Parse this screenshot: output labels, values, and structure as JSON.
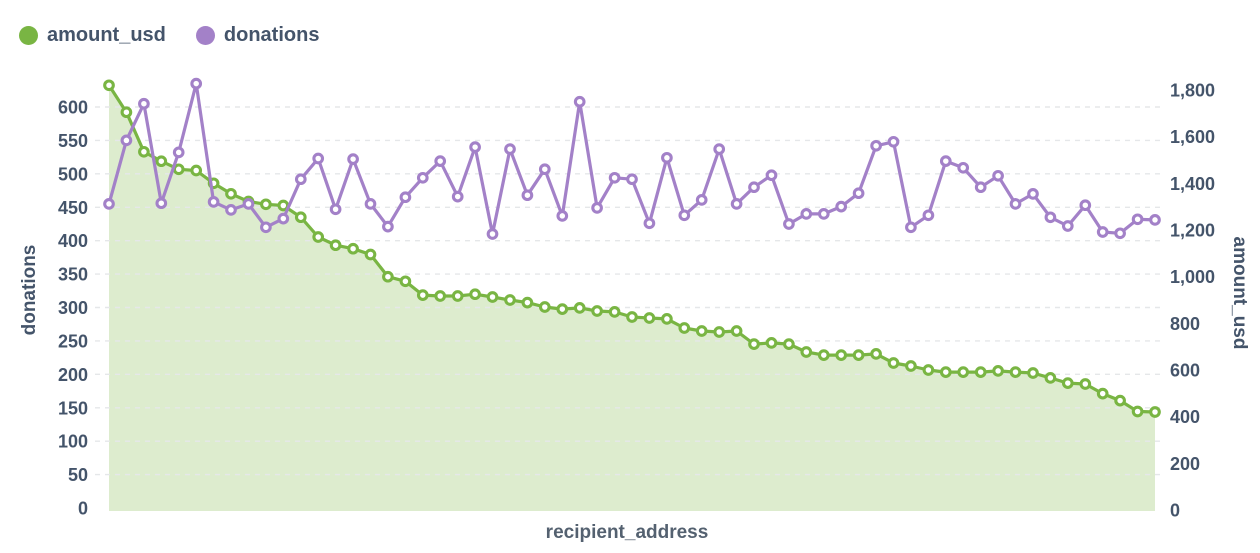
{
  "legend": {
    "items": [
      {
        "label": "amount_usd",
        "color": "#79b543"
      },
      {
        "label": "donations",
        "color": "#a381c8"
      }
    ]
  },
  "chart_data": {
    "type": "line",
    "subtype": "dual-axis area+line, open circle markers",
    "x_axis": {
      "label": "recipient_address",
      "tick_labels": []
    },
    "left_axis": {
      "label": "donations",
      "min": 0,
      "max": 650,
      "tick_step": 50,
      "ticks": [
        0,
        50,
        100,
        150,
        200,
        250,
        300,
        350,
        400,
        450,
        500,
        550,
        600
      ]
    },
    "right_axis": {
      "label": "amount_usd",
      "min": 0,
      "max": 1860,
      "tick_step": 200,
      "ticks": [
        "0",
        "200",
        "400",
        "600",
        "800",
        "1,000",
        "1,200",
        "1,400",
        "1,600",
        "1,800"
      ]
    },
    "grid": {
      "horizontal": true,
      "vertical": false,
      "style": "dashed",
      "color": "#e5e7e9"
    },
    "series": [
      {
        "name": "amount_usd",
        "y_axis": "right",
        "type": "area",
        "color": "#79b543",
        "fill": "#ddecce",
        "marker": "open-circle",
        "values": [
          1820,
          1705,
          1535,
          1495,
          1460,
          1455,
          1400,
          1355,
          1322,
          1310,
          1305,
          1255,
          1170,
          1135,
          1120,
          1095,
          1000,
          980,
          921,
          917,
          917,
          925,
          913,
          900,
          889,
          870,
          861,
          866,
          853,
          849,
          827,
          823,
          819,
          780,
          767,
          763,
          767,
          711,
          716,
          711,
          677,
          664,
          664,
          664,
          669,
          630,
          617,
          600,
          591,
          591,
          591,
          596,
          591,
          587,
          566,
          544,
          540,
          499,
          469,
          422,
          420
        ]
      },
      {
        "name": "donations",
        "y_axis": "left",
        "type": "line",
        "color": "#a381c8",
        "marker": "open-circle",
        "values": [
          455,
          550,
          605,
          456,
          532,
          635,
          458,
          446,
          455,
          420,
          433,
          492,
          523,
          447,
          522,
          455,
          421,
          465,
          494,
          519,
          466,
          540,
          410,
          537,
          468,
          507,
          437,
          608,
          449,
          494,
          492,
          426,
          524,
          438,
          461,
          537,
          455,
          480,
          498,
          425,
          440,
          440,
          451,
          471,
          542,
          548,
          420,
          438,
          519,
          509,
          480,
          497,
          455,
          470,
          435,
          422,
          453,
          413,
          411,
          432,
          431
        ]
      }
    ]
  }
}
